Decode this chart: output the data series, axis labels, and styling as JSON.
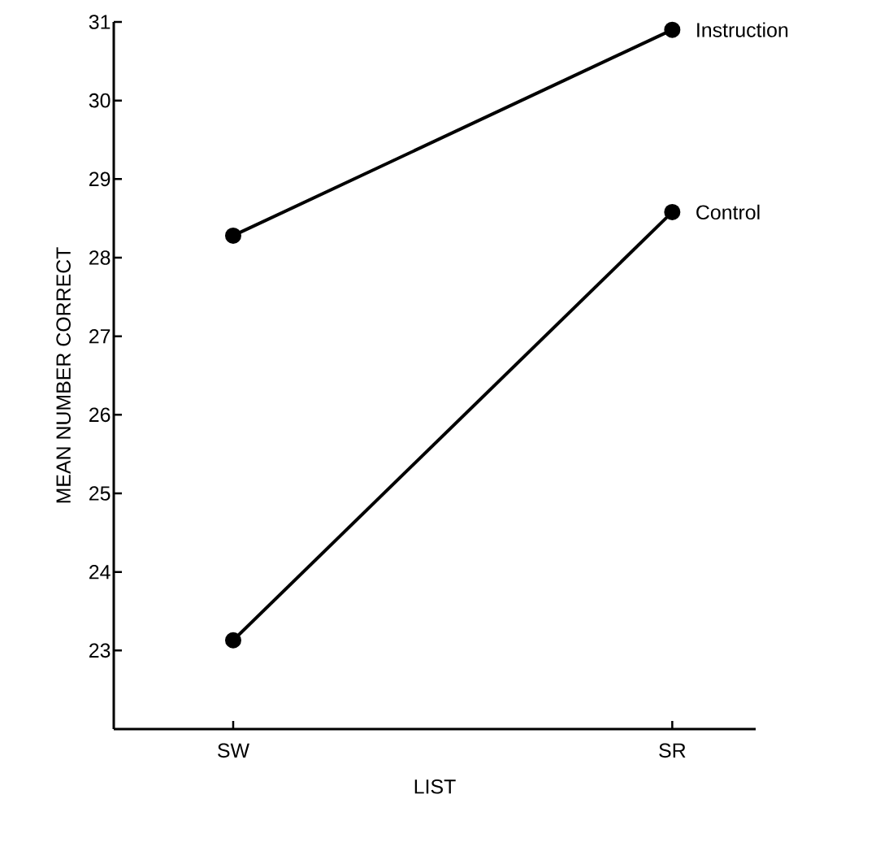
{
  "chart_data": {
    "type": "line",
    "xlabel": "LIST",
    "ylabel": "MEAN NUMBER CORRECT",
    "categories": [
      "SW",
      "SR"
    ],
    "series": [
      {
        "name": "Instruction",
        "color": "#000000",
        "values": [
          28.28,
          30.9
        ]
      },
      {
        "name": "Control",
        "color": "#000000",
        "values": [
          23.13,
          28.58
        ]
      }
    ],
    "ylim": [
      22,
      31
    ],
    "yticks": [
      23,
      24,
      25,
      26,
      27,
      28,
      29,
      30,
      31
    ],
    "marker": "circle",
    "line_style": "solid",
    "grid": false
  }
}
